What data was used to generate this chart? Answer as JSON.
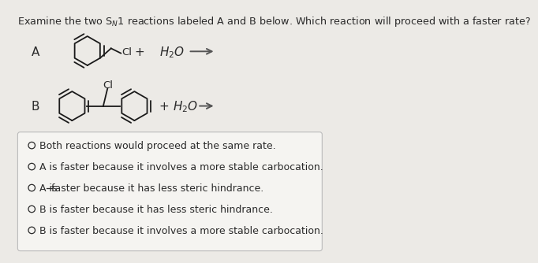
{
  "title": "Examine the two S$_N$1 reactions labeled A and B below. Which reaction will proceed with a faster rate?",
  "label_A": "A",
  "label_B": "B",
  "options": [
    "Both reactions would proceed at the same rate.",
    "A is faster because it involves a more stable carbocation.",
    "A is̅faster because it has less steric hindrance.",
    "B is faster because it has less steric hindrance.",
    "B is faster because it involves a more stable carbocation."
  ],
  "bg_color": "#eceae6",
  "box_color": "#f5f4f1",
  "text_color": "#2a2a2a",
  "arrow_color": "#555555",
  "ring_color": "#1a1a1a"
}
